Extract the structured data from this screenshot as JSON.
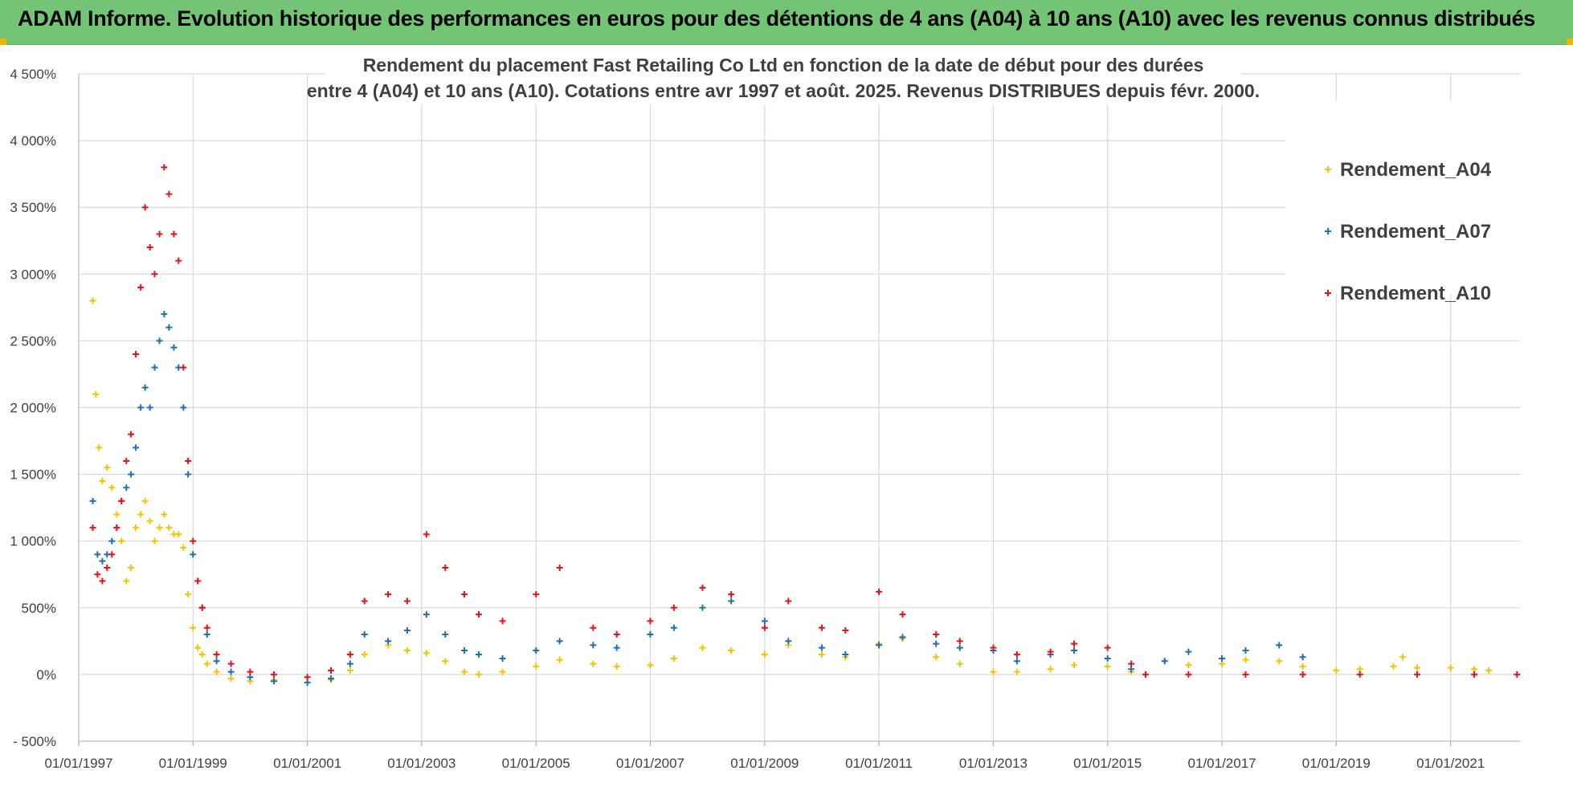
{
  "banner": {
    "title": "ADAM Informe. Evolution historique des performances en euros pour des détentions de 4 ans (A04) à 10 ans (A10) avec les revenus connus distribués"
  },
  "colors": {
    "banner_bg": "#74c476",
    "A04": "#f5c400",
    "A07": "#1f6fb5",
    "A10": "#e8111b",
    "grid": "#d9d9d9"
  },
  "chart_data": {
    "type": "scatter",
    "title": "Rendement du placement Fast Retailing Co Ltd en fonction de la date de début pour des durées",
    "subtitle": "entre 4 (A04) et 10 ans (A10). Cotations entre avr 1997 et août. 2025. Revenus DISTRIBUES depuis févr. 2000.",
    "xlabel": "",
    "ylabel": "",
    "xlim": [
      "1997-01-01",
      "2022-03-20"
    ],
    "ylim": [
      -500,
      4500
    ],
    "y_ticks": [
      -500,
      0,
      500,
      1000,
      1500,
      2000,
      2500,
      3000,
      3500,
      4000,
      4500
    ],
    "y_tick_labels": [
      "- 500%",
      "0%",
      "500%",
      "1 000%",
      "1 500%",
      "2 000%",
      "2 500%",
      "3 000%",
      "3 500%",
      "4 000%",
      "4 500%"
    ],
    "x_ticks": [
      "1997-01-01",
      "1999-01-01",
      "2001-01-01",
      "2003-01-01",
      "2005-01-01",
      "2007-01-01",
      "2009-01-01",
      "2011-01-01",
      "2013-01-01",
      "2015-01-01",
      "2017-01-01",
      "2019-01-01",
      "2021-01-01"
    ],
    "x_tick_labels": [
      "01/01/1997",
      "01/01/1999",
      "01/01/2001",
      "01/01/2003",
      "01/01/2005",
      "01/01/2007",
      "01/01/2009",
      "01/01/2011",
      "01/01/2013",
      "01/01/2015",
      "01/01/2017",
      "01/01/2019",
      "01/01/2021"
    ],
    "grid": true,
    "legend_position": "top-right",
    "marker": "+",
    "series": [
      {
        "name": "Rendement_A04",
        "color": "#f5c400",
        "points": [
          [
            "1997-04-01",
            2800
          ],
          [
            "1997-04-20",
            2100
          ],
          [
            "1997-05-10",
            1700
          ],
          [
            "1997-06-01",
            1450
          ],
          [
            "1997-07-01",
            1550
          ],
          [
            "1997-08-01",
            1400
          ],
          [
            "1997-09-01",
            1200
          ],
          [
            "1997-10-01",
            1000
          ],
          [
            "1997-11-01",
            700
          ],
          [
            "1997-12-01",
            800
          ],
          [
            "1998-01-01",
            1100
          ],
          [
            "1998-02-01",
            1200
          ],
          [
            "1998-03-01",
            1300
          ],
          [
            "1998-04-01",
            1150
          ],
          [
            "1998-05-01",
            1000
          ],
          [
            "1998-06-01",
            1100
          ],
          [
            "1998-07-01",
            1200
          ],
          [
            "1998-08-01",
            1100
          ],
          [
            "1998-09-01",
            1050
          ],
          [
            "1998-10-01",
            1050
          ],
          [
            "1998-11-01",
            950
          ],
          [
            "1998-12-01",
            600
          ],
          [
            "1999-01-01",
            350
          ],
          [
            "1999-02-01",
            200
          ],
          [
            "1999-03-01",
            150
          ],
          [
            "1999-04-01",
            80
          ],
          [
            "1999-06-01",
            20
          ],
          [
            "1999-09-01",
            -30
          ],
          [
            "2000-01-01",
            -50
          ],
          [
            "2000-06-01",
            -40
          ],
          [
            "2001-01-01",
            -60
          ],
          [
            "2001-06-01",
            -40
          ],
          [
            "2001-10-01",
            30
          ],
          [
            "2002-01-01",
            150
          ],
          [
            "2002-06-01",
            220
          ],
          [
            "2002-10-01",
            180
          ],
          [
            "2003-02-01",
            160
          ],
          [
            "2003-06-01",
            100
          ],
          [
            "2003-10-01",
            20
          ],
          [
            "2004-01-01",
            0
          ],
          [
            "2004-06-01",
            20
          ],
          [
            "2005-01-01",
            60
          ],
          [
            "2005-06-01",
            110
          ],
          [
            "2006-01-01",
            80
          ],
          [
            "2006-06-01",
            60
          ],
          [
            "2007-01-01",
            70
          ],
          [
            "2007-06-01",
            120
          ],
          [
            "2007-12-01",
            200
          ],
          [
            "2008-06-01",
            180
          ],
          [
            "2009-01-01",
            150
          ],
          [
            "2009-06-01",
            220
          ],
          [
            "2010-01-01",
            150
          ],
          [
            "2010-06-01",
            130
          ],
          [
            "2011-01-01",
            230
          ],
          [
            "2011-06-01",
            270
          ],
          [
            "2012-01-01",
            130
          ],
          [
            "2012-06-01",
            80
          ],
          [
            "2013-01-01",
            20
          ],
          [
            "2013-06-01",
            20
          ],
          [
            "2014-01-01",
            40
          ],
          [
            "2014-06-01",
            70
          ],
          [
            "2015-01-01",
            60
          ],
          [
            "2015-06-01",
            20
          ],
          [
            "2016-01-01",
            100
          ],
          [
            "2016-06-01",
            70
          ],
          [
            "2017-01-01",
            80
          ],
          [
            "2017-06-01",
            110
          ],
          [
            "2018-01-01",
            100
          ],
          [
            "2018-06-01",
            60
          ],
          [
            "2019-01-01",
            30
          ],
          [
            "2019-06-01",
            40
          ],
          [
            "2020-01-01",
            60
          ],
          [
            "2020-03-01",
            130
          ],
          [
            "2020-06-01",
            50
          ],
          [
            "2021-01-01",
            50
          ],
          [
            "2021-06-01",
            40
          ],
          [
            "2021-09-01",
            30
          ]
        ]
      },
      {
        "name": "Rendement_A07",
        "color": "#1f6fb5",
        "points": [
          [
            "1997-04-01",
            1300
          ],
          [
            "1997-05-01",
            900
          ],
          [
            "1997-06-01",
            850
          ],
          [
            "1997-07-01",
            900
          ],
          [
            "1997-08-01",
            1000
          ],
          [
            "1997-09-01",
            1100
          ],
          [
            "1997-10-01",
            1300
          ],
          [
            "1997-11-01",
            1400
          ],
          [
            "1997-12-01",
            1500
          ],
          [
            "1998-01-01",
            1700
          ],
          [
            "1998-02-01",
            2000
          ],
          [
            "1998-03-01",
            2150
          ],
          [
            "1998-04-01",
            2000
          ],
          [
            "1998-05-01",
            2300
          ],
          [
            "1998-06-01",
            2500
          ],
          [
            "1998-07-01",
            2700
          ],
          [
            "1998-08-01",
            2600
          ],
          [
            "1998-09-01",
            2450
          ],
          [
            "1998-10-01",
            2300
          ],
          [
            "1998-11-01",
            2000
          ],
          [
            "1998-12-01",
            1500
          ],
          [
            "1999-01-01",
            900
          ],
          [
            "1999-02-01",
            700
          ],
          [
            "1999-03-01",
            500
          ],
          [
            "1999-04-01",
            300
          ],
          [
            "1999-06-01",
            100
          ],
          [
            "1999-09-01",
            20
          ],
          [
            "2000-01-01",
            -20
          ],
          [
            "2000-06-01",
            -50
          ],
          [
            "2001-01-01",
            -60
          ],
          [
            "2001-06-01",
            -30
          ],
          [
            "2001-10-01",
            80
          ],
          [
            "2002-01-01",
            300
          ],
          [
            "2002-06-01",
            250
          ],
          [
            "2002-10-01",
            330
          ],
          [
            "2003-02-01",
            450
          ],
          [
            "2003-06-01",
            300
          ],
          [
            "2003-10-01",
            180
          ],
          [
            "2004-01-01",
            150
          ],
          [
            "2004-06-01",
            120
          ],
          [
            "2005-01-01",
            180
          ],
          [
            "2005-06-01",
            250
          ],
          [
            "2006-01-01",
            220
          ],
          [
            "2006-06-01",
            200
          ],
          [
            "2007-01-01",
            300
          ],
          [
            "2007-06-01",
            350
          ],
          [
            "2007-12-01",
            500
          ],
          [
            "2008-06-01",
            550
          ],
          [
            "2009-01-01",
            400
          ],
          [
            "2009-06-01",
            250
          ],
          [
            "2010-01-01",
            200
          ],
          [
            "2010-06-01",
            150
          ],
          [
            "2011-01-01",
            220
          ],
          [
            "2011-06-01",
            280
          ],
          [
            "2012-01-01",
            230
          ],
          [
            "2012-06-01",
            200
          ],
          [
            "2013-01-01",
            180
          ],
          [
            "2013-06-01",
            100
          ],
          [
            "2014-01-01",
            150
          ],
          [
            "2014-06-01",
            180
          ],
          [
            "2015-01-01",
            120
          ],
          [
            "2015-06-01",
            40
          ],
          [
            "2016-01-01",
            100
          ],
          [
            "2016-06-01",
            170
          ],
          [
            "2017-01-01",
            120
          ],
          [
            "2017-06-01",
            180
          ],
          [
            "2018-01-01",
            220
          ],
          [
            "2018-06-01",
            130
          ]
        ]
      },
      {
        "name": "Rendement_A10",
        "color": "#e8111b",
        "points": [
          [
            "1997-04-01",
            1100
          ],
          [
            "1997-05-01",
            750
          ],
          [
            "1997-06-01",
            700
          ],
          [
            "1997-07-01",
            800
          ],
          [
            "1997-08-01",
            900
          ],
          [
            "1997-09-01",
            1100
          ],
          [
            "1997-10-01",
            1300
          ],
          [
            "1997-11-01",
            1600
          ],
          [
            "1997-12-01",
            1800
          ],
          [
            "1998-01-01",
            2400
          ],
          [
            "1998-02-01",
            2900
          ],
          [
            "1998-03-01",
            3500
          ],
          [
            "1998-04-01",
            3200
          ],
          [
            "1998-05-01",
            3000
          ],
          [
            "1998-06-01",
            3300
          ],
          [
            "1998-07-01",
            3800
          ],
          [
            "1998-08-01",
            3600
          ],
          [
            "1998-09-01",
            3300
          ],
          [
            "1998-10-01",
            3100
          ],
          [
            "1998-11-01",
            2300
          ],
          [
            "1998-12-01",
            1600
          ],
          [
            "1999-01-01",
            1000
          ],
          [
            "1999-02-01",
            700
          ],
          [
            "1999-03-01",
            500
          ],
          [
            "1999-04-01",
            350
          ],
          [
            "1999-06-01",
            150
          ],
          [
            "1999-09-01",
            80
          ],
          [
            "2000-01-01",
            20
          ],
          [
            "2000-06-01",
            0
          ],
          [
            "2001-01-01",
            -20
          ],
          [
            "2001-06-01",
            30
          ],
          [
            "2001-10-01",
            150
          ],
          [
            "2002-01-01",
            550
          ],
          [
            "2002-06-01",
            600
          ],
          [
            "2002-10-01",
            550
          ],
          [
            "2003-02-01",
            1050
          ],
          [
            "2003-06-01",
            800
          ],
          [
            "2003-10-01",
            600
          ],
          [
            "2004-01-01",
            450
          ],
          [
            "2004-06-01",
            400
          ],
          [
            "2005-01-01",
            600
          ],
          [
            "2005-06-01",
            800
          ],
          [
            "2006-01-01",
            350
          ],
          [
            "2006-06-01",
            300
          ],
          [
            "2007-01-01",
            400
          ],
          [
            "2007-06-01",
            500
          ],
          [
            "2007-12-01",
            650
          ],
          [
            "2008-06-01",
            600
          ],
          [
            "2009-01-01",
            350
          ],
          [
            "2009-06-01",
            550
          ],
          [
            "2010-01-01",
            350
          ],
          [
            "2010-06-01",
            330
          ],
          [
            "2011-01-01",
            620
          ],
          [
            "2011-06-01",
            450
          ],
          [
            "2012-01-01",
            300
          ],
          [
            "2012-06-01",
            250
          ],
          [
            "2013-01-01",
            200
          ],
          [
            "2013-06-01",
            150
          ],
          [
            "2014-01-01",
            170
          ],
          [
            "2014-06-01",
            230
          ],
          [
            "2015-01-01",
            200
          ],
          [
            "2015-06-01",
            80
          ],
          [
            "2015-09-01",
            0
          ],
          [
            "2016-06-01",
            0
          ],
          [
            "2017-06-01",
            0
          ],
          [
            "2018-06-01",
            0
          ],
          [
            "2019-06-01",
            0
          ],
          [
            "2020-06-01",
            0
          ],
          [
            "2021-06-01",
            0
          ],
          [
            "2022-03-01",
            0
          ]
        ]
      }
    ]
  }
}
